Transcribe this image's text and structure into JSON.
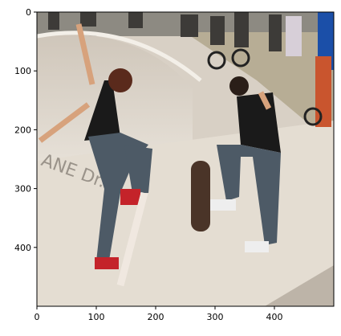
{
  "figure": {
    "x_axis": {
      "ticks": [
        {
          "value": 0,
          "label": "0"
        },
        {
          "value": 100,
          "label": "100"
        },
        {
          "value": 200,
          "label": "200"
        },
        {
          "value": 300,
          "label": "300"
        },
        {
          "value": 400,
          "label": "400"
        }
      ],
      "range": [
        0,
        500
      ]
    },
    "y_axis": {
      "ticks": [
        {
          "value": 0,
          "label": "0"
        },
        {
          "value": 100,
          "label": "100"
        },
        {
          "value": 200,
          "label": "200"
        },
        {
          "value": 300,
          "label": "300"
        },
        {
          "value": 400,
          "label": "400"
        }
      ],
      "range": [
        0,
        500
      ],
      "inverted": true
    },
    "photo": {
      "subject": "two skateboarders performing kickflips in a concrete skate bowl with spectators and bikes in background",
      "graffiti_text": "ANE Dr."
    },
    "colors": {
      "sky": "#e8e4de",
      "concrete": "#d9d2c8",
      "shadow_concrete": "#b9b1a6",
      "shirt": "#1a1a1a",
      "jeans": "#4d5a66",
      "skin": "#d7a27c",
      "hair": "#5a2a1c",
      "shoe_red": "#c4232a",
      "banner_blue": "#1b4fa8"
    }
  }
}
